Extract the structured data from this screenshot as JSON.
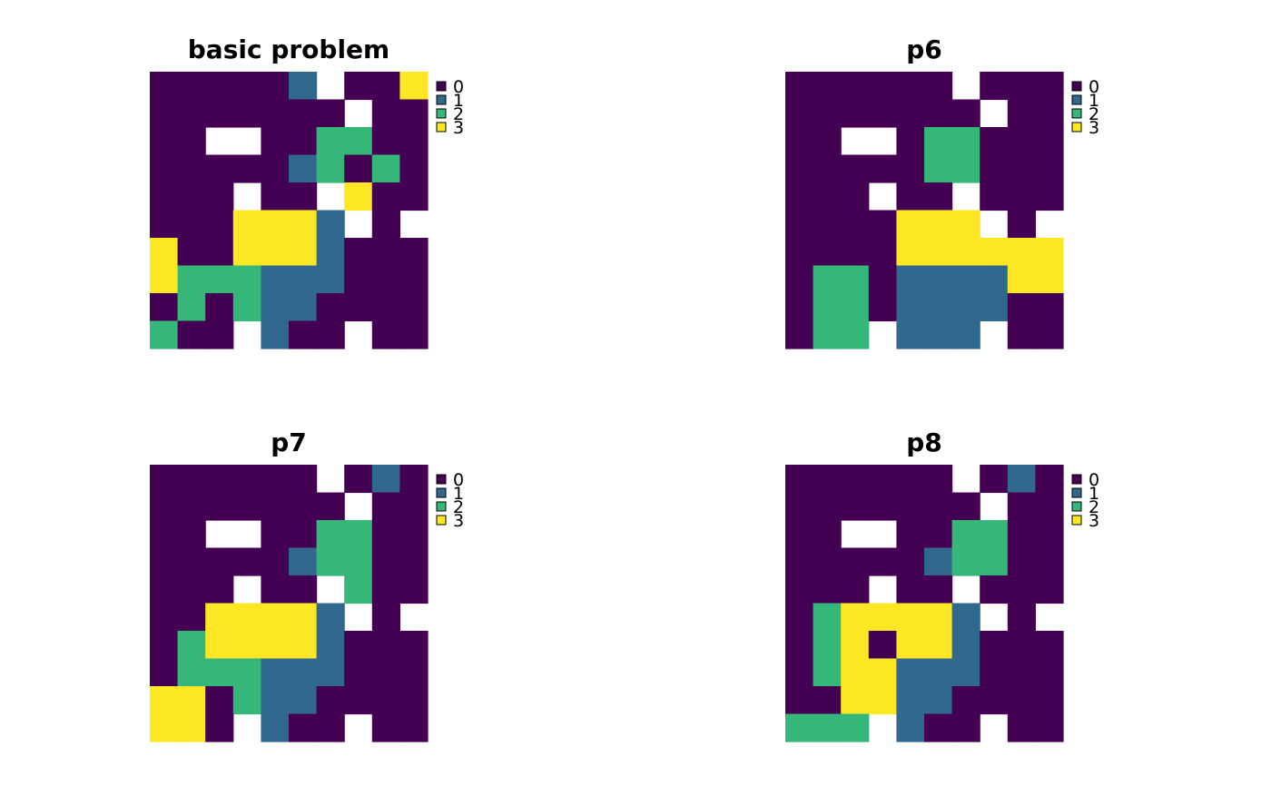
{
  "colors": {
    "0": "#440154",
    "1": "#31688E",
    "2": "#35B779",
    "3": "#FDE725",
    "na": "#ffffff"
  },
  "chart_data": [
    {
      "type": "heatmap",
      "title": "basic problem",
      "legend": {
        "placement": "top-right",
        "entries": [
          "0",
          "1",
          "2",
          "3"
        ]
      },
      "grid": [
        [
          0,
          0,
          0,
          0,
          0,
          1,
          null,
          0,
          0,
          3
        ],
        [
          0,
          0,
          0,
          0,
          0,
          0,
          0,
          null,
          0,
          0
        ],
        [
          0,
          0,
          null,
          null,
          0,
          0,
          2,
          2,
          0,
          0
        ],
        [
          0,
          0,
          0,
          0,
          0,
          1,
          2,
          0,
          2,
          0
        ],
        [
          0,
          0,
          0,
          null,
          0,
          0,
          null,
          3,
          0,
          0
        ],
        [
          0,
          0,
          0,
          3,
          3,
          3,
          1,
          null,
          0,
          null
        ],
        [
          3,
          0,
          0,
          3,
          3,
          3,
          1,
          0,
          0,
          0
        ],
        [
          3,
          2,
          2,
          2,
          1,
          1,
          1,
          0,
          0,
          0
        ],
        [
          0,
          2,
          0,
          2,
          1,
          1,
          0,
          0,
          0,
          0
        ],
        [
          2,
          0,
          0,
          null,
          1,
          0,
          0,
          null,
          0,
          0
        ]
      ]
    },
    {
      "type": "heatmap",
      "title": "p6",
      "legend": {
        "placement": "top-right",
        "entries": [
          "0",
          "1",
          "2",
          "3"
        ]
      },
      "grid": [
        [
          0,
          0,
          0,
          0,
          0,
          0,
          null,
          0,
          0,
          0
        ],
        [
          0,
          0,
          0,
          0,
          0,
          0,
          0,
          null,
          0,
          0
        ],
        [
          0,
          0,
          null,
          null,
          0,
          2,
          2,
          0,
          0,
          0
        ],
        [
          0,
          0,
          0,
          0,
          0,
          2,
          2,
          0,
          0,
          0
        ],
        [
          0,
          0,
          0,
          null,
          0,
          0,
          null,
          0,
          0,
          0
        ],
        [
          0,
          0,
          0,
          0,
          3,
          3,
          3,
          null,
          0,
          null
        ],
        [
          0,
          0,
          0,
          0,
          3,
          3,
          3,
          3,
          3,
          3
        ],
        [
          0,
          2,
          2,
          0,
          1,
          1,
          1,
          1,
          3,
          3
        ],
        [
          0,
          2,
          2,
          0,
          1,
          1,
          1,
          1,
          0,
          0
        ],
        [
          0,
          2,
          2,
          null,
          1,
          1,
          1,
          null,
          0,
          0
        ]
      ]
    },
    {
      "type": "heatmap",
      "title": "p7",
      "legend": {
        "placement": "top-right",
        "entries": [
          "0",
          "1",
          "2",
          "3"
        ]
      },
      "grid": [
        [
          0,
          0,
          0,
          0,
          0,
          0,
          null,
          0,
          1,
          0
        ],
        [
          0,
          0,
          0,
          0,
          0,
          0,
          0,
          null,
          0,
          0
        ],
        [
          0,
          0,
          null,
          null,
          0,
          0,
          2,
          2,
          0,
          0
        ],
        [
          0,
          0,
          0,
          0,
          0,
          1,
          2,
          2,
          0,
          0
        ],
        [
          0,
          0,
          0,
          null,
          0,
          0,
          null,
          2,
          0,
          0
        ],
        [
          0,
          0,
          3,
          3,
          3,
          3,
          1,
          null,
          0,
          null
        ],
        [
          0,
          2,
          3,
          3,
          3,
          3,
          1,
          0,
          0,
          0
        ],
        [
          0,
          2,
          2,
          2,
          1,
          1,
          1,
          0,
          0,
          0
        ],
        [
          3,
          3,
          0,
          2,
          1,
          1,
          0,
          0,
          0,
          0
        ],
        [
          3,
          3,
          0,
          null,
          1,
          0,
          0,
          null,
          0,
          0
        ]
      ]
    },
    {
      "type": "heatmap",
      "title": "p8",
      "legend": {
        "placement": "top-right",
        "entries": [
          "0",
          "1",
          "2",
          "3"
        ]
      },
      "grid": [
        [
          0,
          0,
          0,
          0,
          0,
          0,
          null,
          0,
          1,
          0
        ],
        [
          0,
          0,
          0,
          0,
          0,
          0,
          0,
          null,
          0,
          0
        ],
        [
          0,
          0,
          null,
          null,
          0,
          0,
          2,
          2,
          0,
          0
        ],
        [
          0,
          0,
          0,
          0,
          0,
          1,
          2,
          2,
          0,
          0
        ],
        [
          0,
          0,
          0,
          null,
          0,
          0,
          null,
          0,
          0,
          0
        ],
        [
          0,
          2,
          3,
          3,
          3,
          3,
          1,
          null,
          0,
          null
        ],
        [
          0,
          2,
          3,
          0,
          3,
          3,
          1,
          0,
          0,
          0
        ],
        [
          0,
          2,
          3,
          3,
          1,
          1,
          1,
          0,
          0,
          0
        ],
        [
          0,
          0,
          3,
          3,
          1,
          1,
          0,
          0,
          0,
          0
        ],
        [
          2,
          2,
          2,
          null,
          1,
          0,
          0,
          null,
          0,
          0
        ]
      ]
    }
  ]
}
